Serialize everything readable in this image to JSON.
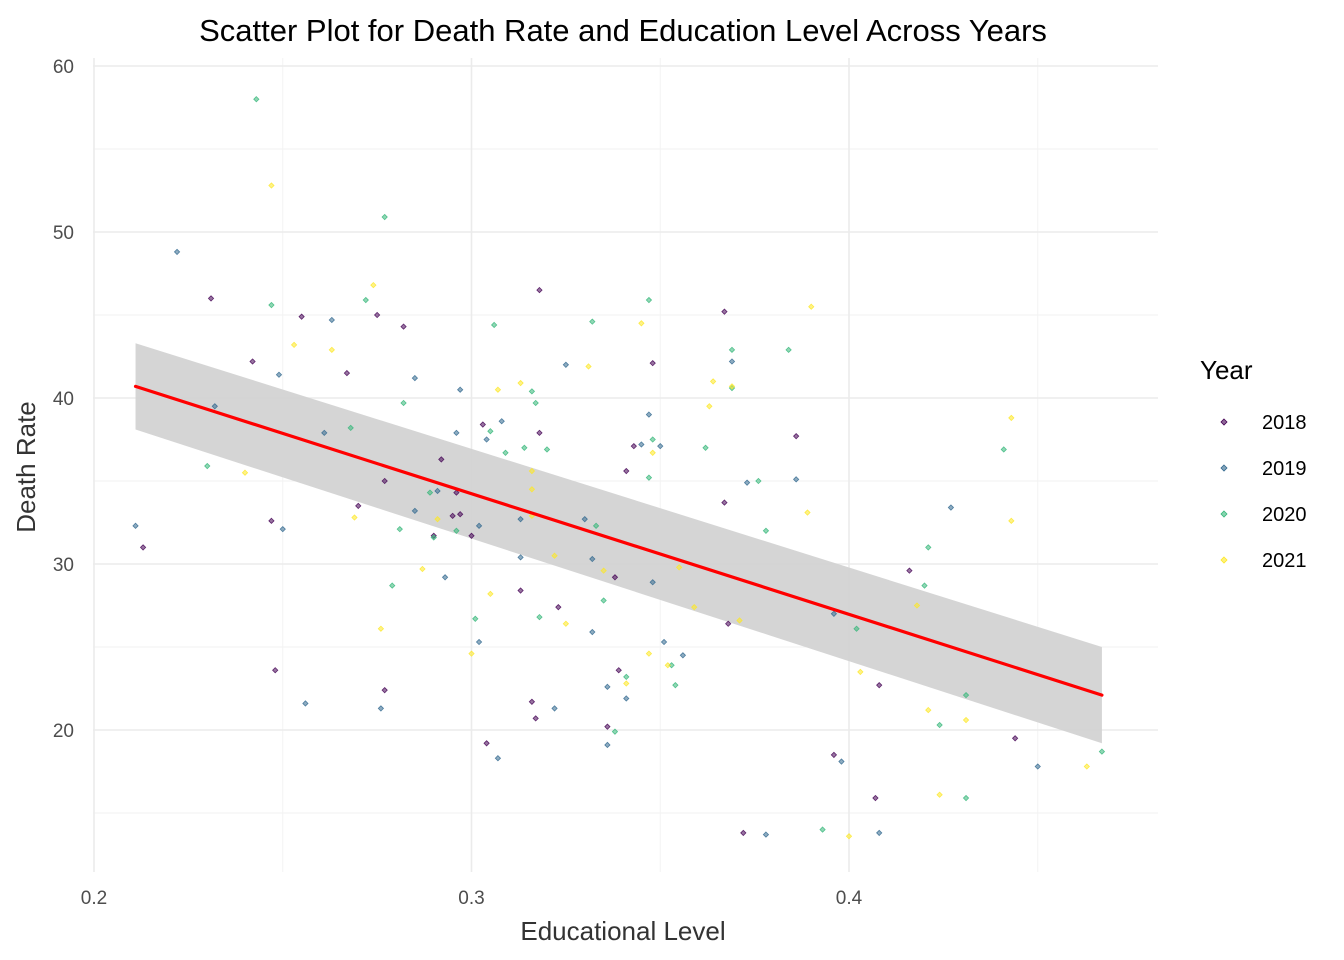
{
  "chart_data": {
    "type": "scatter",
    "title": "Scatter Plot for Death Rate and Education Level Across Years",
    "xlabel": "Educational Level",
    "ylabel": "Death Rate",
    "xlim": [
      0.2,
      0.47
    ],
    "ylim": [
      12,
      61
    ],
    "xticks": [
      0.2,
      0.3,
      0.4
    ],
    "xtick_labels": [
      "0.2",
      "0.3",
      "0.4"
    ],
    "yticks": [
      20,
      30,
      40,
      50,
      60
    ],
    "ytick_labels": [
      "20",
      "30",
      "40",
      "50",
      "60"
    ],
    "grid": true,
    "legend": {
      "title": "Year",
      "position": "right"
    },
    "series": [
      {
        "name": "2018",
        "color": "#440154",
        "points": [
          [
            0.213,
            31.0
          ],
          [
            0.231,
            46.0
          ],
          [
            0.242,
            42.2
          ],
          [
            0.247,
            32.6
          ],
          [
            0.248,
            23.6
          ],
          [
            0.255,
            44.9
          ],
          [
            0.267,
            41.5
          ],
          [
            0.27,
            33.5
          ],
          [
            0.275,
            45.0
          ],
          [
            0.277,
            35.0
          ],
          [
            0.277,
            22.4
          ],
          [
            0.282,
            44.3
          ],
          [
            0.29,
            31.7
          ],
          [
            0.292,
            36.3
          ],
          [
            0.295,
            32.9
          ],
          [
            0.297,
            33.0
          ],
          [
            0.296,
            34.3
          ],
          [
            0.3,
            31.7
          ],
          [
            0.303,
            38.4
          ],
          [
            0.304,
            19.2
          ],
          [
            0.313,
            28.4
          ],
          [
            0.316,
            21.7
          ],
          [
            0.317,
            20.7
          ],
          [
            0.318,
            46.5
          ],
          [
            0.318,
            37.9
          ],
          [
            0.323,
            27.4
          ],
          [
            0.336,
            20.2
          ],
          [
            0.338,
            29.2
          ],
          [
            0.339,
            23.6
          ],
          [
            0.341,
            35.6
          ],
          [
            0.343,
            37.1
          ],
          [
            0.348,
            42.1
          ],
          [
            0.367,
            45.2
          ],
          [
            0.367,
            33.7
          ],
          [
            0.368,
            26.4
          ],
          [
            0.372,
            13.8
          ],
          [
            0.386,
            37.7
          ],
          [
            0.396,
            18.5
          ],
          [
            0.407,
            15.9
          ],
          [
            0.408,
            22.7
          ],
          [
            0.416,
            29.6
          ],
          [
            0.444,
            19.5
          ]
        ]
      },
      {
        "name": "2019",
        "color": "#31688e",
        "points": [
          [
            0.211,
            32.3
          ],
          [
            0.222,
            48.8
          ],
          [
            0.232,
            39.5
          ],
          [
            0.249,
            41.4
          ],
          [
            0.25,
            32.1
          ],
          [
            0.256,
            21.6
          ],
          [
            0.261,
            37.9
          ],
          [
            0.263,
            44.7
          ],
          [
            0.276,
            21.3
          ],
          [
            0.285,
            41.2
          ],
          [
            0.285,
            33.2
          ],
          [
            0.291,
            34.4
          ],
          [
            0.293,
            29.2
          ],
          [
            0.296,
            37.9
          ],
          [
            0.297,
            40.5
          ],
          [
            0.302,
            32.3
          ],
          [
            0.302,
            25.3
          ],
          [
            0.304,
            37.5
          ],
          [
            0.307,
            18.3
          ],
          [
            0.308,
            38.6
          ],
          [
            0.313,
            30.4
          ],
          [
            0.313,
            32.7
          ],
          [
            0.322,
            21.3
          ],
          [
            0.325,
            42.0
          ],
          [
            0.33,
            32.7
          ],
          [
            0.332,
            30.3
          ],
          [
            0.332,
            25.9
          ],
          [
            0.336,
            22.6
          ],
          [
            0.336,
            19.1
          ],
          [
            0.341,
            21.9
          ],
          [
            0.345,
            37.2
          ],
          [
            0.347,
            39.0
          ],
          [
            0.348,
            28.9
          ],
          [
            0.35,
            37.1
          ],
          [
            0.351,
            25.3
          ],
          [
            0.356,
            24.5
          ],
          [
            0.369,
            42.2
          ],
          [
            0.373,
            34.9
          ],
          [
            0.378,
            13.7
          ],
          [
            0.386,
            35.1
          ],
          [
            0.396,
            27.0
          ],
          [
            0.398,
            18.1
          ],
          [
            0.408,
            13.8
          ],
          [
            0.427,
            33.4
          ],
          [
            0.45,
            17.8
          ]
        ]
      },
      {
        "name": "2020",
        "color": "#35b779",
        "points": [
          [
            0.23,
            35.9
          ],
          [
            0.243,
            58.0
          ],
          [
            0.247,
            45.6
          ],
          [
            0.268,
            38.2
          ],
          [
            0.272,
            45.9
          ],
          [
            0.277,
            50.9
          ],
          [
            0.279,
            28.7
          ],
          [
            0.282,
            39.7
          ],
          [
            0.281,
            32.1
          ],
          [
            0.289,
            34.3
          ],
          [
            0.29,
            31.6
          ],
          [
            0.296,
            32.0
          ],
          [
            0.301,
            26.7
          ],
          [
            0.305,
            38.0
          ],
          [
            0.306,
            44.4
          ],
          [
            0.309,
            36.7
          ],
          [
            0.314,
            37.0
          ],
          [
            0.316,
            40.4
          ],
          [
            0.317,
            39.7
          ],
          [
            0.318,
            26.8
          ],
          [
            0.32,
            36.9
          ],
          [
            0.332,
            44.6
          ],
          [
            0.333,
            32.3
          ],
          [
            0.335,
            27.8
          ],
          [
            0.338,
            19.9
          ],
          [
            0.341,
            23.2
          ],
          [
            0.347,
            35.2
          ],
          [
            0.348,
            37.5
          ],
          [
            0.347,
            45.9
          ],
          [
            0.353,
            23.9
          ],
          [
            0.354,
            22.7
          ],
          [
            0.362,
            37.0
          ],
          [
            0.369,
            42.9
          ],
          [
            0.369,
            40.6
          ],
          [
            0.376,
            35.0
          ],
          [
            0.378,
            32.0
          ],
          [
            0.384,
            42.9
          ],
          [
            0.393,
            14.0
          ],
          [
            0.402,
            26.1
          ],
          [
            0.42,
            28.7
          ],
          [
            0.421,
            31.0
          ],
          [
            0.424,
            20.3
          ],
          [
            0.431,
            15.9
          ],
          [
            0.431,
            22.1
          ],
          [
            0.441,
            36.9
          ],
          [
            0.467,
            18.7
          ]
        ]
      },
      {
        "name": "2021",
        "color": "#fde725",
        "points": [
          [
            0.24,
            35.5
          ],
          [
            0.247,
            52.8
          ],
          [
            0.253,
            43.2
          ],
          [
            0.263,
            42.9
          ],
          [
            0.269,
            32.8
          ],
          [
            0.274,
            46.8
          ],
          [
            0.276,
            26.1
          ],
          [
            0.287,
            29.7
          ],
          [
            0.291,
            32.7
          ],
          [
            0.3,
            24.6
          ],
          [
            0.305,
            28.2
          ],
          [
            0.307,
            40.5
          ],
          [
            0.313,
            40.9
          ],
          [
            0.316,
            35.6
          ],
          [
            0.316,
            34.5
          ],
          [
            0.316,
            32.9
          ],
          [
            0.322,
            30.5
          ],
          [
            0.325,
            26.4
          ],
          [
            0.331,
            41.9
          ],
          [
            0.335,
            29.6
          ],
          [
            0.341,
            22.8
          ],
          [
            0.345,
            44.5
          ],
          [
            0.347,
            24.6
          ],
          [
            0.348,
            36.7
          ],
          [
            0.352,
            23.9
          ],
          [
            0.355,
            29.8
          ],
          [
            0.359,
            27.4
          ],
          [
            0.363,
            39.5
          ],
          [
            0.364,
            41.0
          ],
          [
            0.369,
            40.7
          ],
          [
            0.371,
            26.6
          ],
          [
            0.389,
            33.1
          ],
          [
            0.39,
            45.5
          ],
          [
            0.4,
            13.6
          ],
          [
            0.403,
            23.5
          ],
          [
            0.418,
            27.5
          ],
          [
            0.421,
            21.2
          ],
          [
            0.424,
            16.1
          ],
          [
            0.431,
            20.6
          ],
          [
            0.443,
            38.8
          ],
          [
            0.443,
            32.6
          ],
          [
            0.463,
            17.8
          ]
        ]
      }
    ],
    "fit_line": {
      "method": "lm",
      "color": "#ff0000",
      "band_color": "#d3d3d3",
      "x": [
        0.211,
        0.467
      ],
      "y": [
        40.7,
        22.1
      ],
      "ci_lower": [
        38.1,
        19.2
      ],
      "ci_upper": [
        43.3,
        25.0
      ]
    }
  }
}
